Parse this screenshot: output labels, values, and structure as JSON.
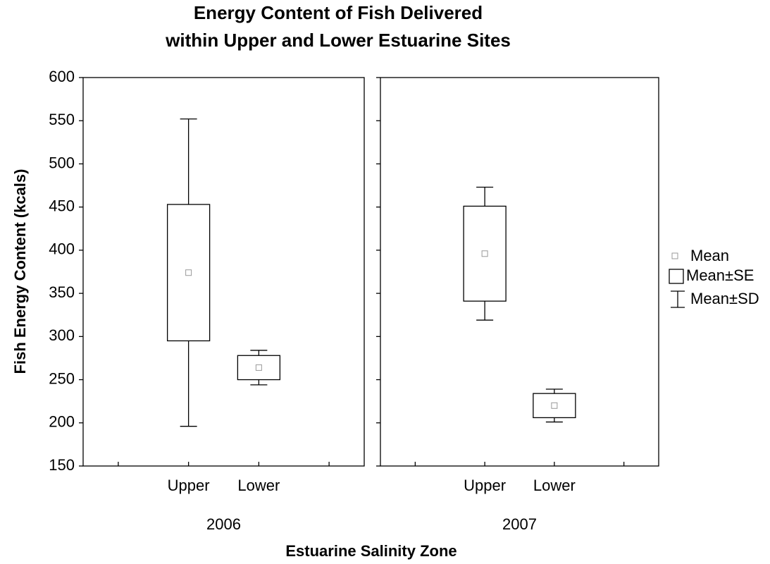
{
  "chart_data": {
    "type": "box",
    "title": [
      "Energy Content of Fish Delivered",
      "within Upper and Lower Estuarine Sites"
    ],
    "xlabel": "Estuarine Salinity Zone",
    "ylabel": "Fish Energy Content (kcals)",
    "ylim": [
      150,
      600
    ],
    "yticks": [
      150,
      200,
      250,
      300,
      350,
      400,
      450,
      500,
      550,
      600
    ],
    "legend": [
      "Mean",
      "Mean±SE",
      "Mean±SD"
    ],
    "panels": [
      {
        "label": "2006",
        "categories": [
          "Upper",
          "Lower"
        ],
        "mean": [
          374,
          264
        ],
        "se": [
          79,
          14
        ],
        "sd": [
          178,
          20
        ]
      },
      {
        "label": "2007",
        "categories": [
          "Upper",
          "Lower"
        ],
        "mean": [
          396,
          220
        ],
        "se": [
          55,
          14
        ],
        "sd": [
          77,
          19
        ]
      }
    ]
  }
}
